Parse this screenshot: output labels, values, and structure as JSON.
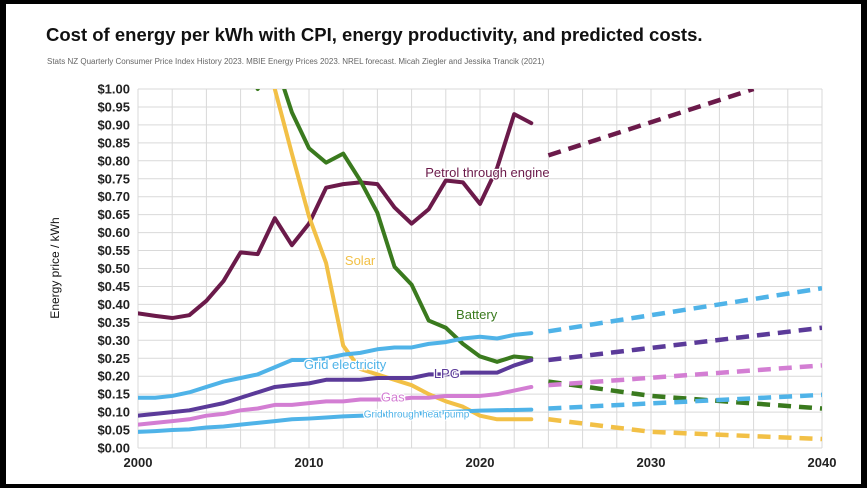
{
  "title": "Cost of energy per kWh with CPI, energy productivity, and predicted costs.",
  "subtitle": "Stats NZ Quarterly Consumer Price Index History 2023. MBIE Energy Prices 2023. NREL forecast. Micah Ziegler and Jessika Trancik (2021)",
  "chart_data": {
    "type": "line",
    "title": "Cost of energy per kWh with CPI, energy productivity, and predicted costs.",
    "xlabel": "",
    "ylabel": "Energy price / kWh",
    "xlim": [
      2000,
      2040
    ],
    "ylim": [
      0,
      1.0
    ],
    "x_ticks": [
      "2000",
      "2010",
      "2020",
      "2030",
      "2040"
    ],
    "y_ticks": [
      "$0.00",
      "$0.05",
      "$0.10",
      "$0.15",
      "$0.20",
      "$0.25",
      "$0.30",
      "$0.35",
      "$0.40",
      "$0.45",
      "$0.50",
      "$0.55",
      "$0.60",
      "$0.65",
      "$0.70",
      "$0.75",
      "$0.80",
      "$0.85",
      "$0.90",
      "$0.95",
      "$1.00"
    ],
    "grid": true,
    "legend": "none",
    "series": [
      {
        "name": "Petrol through engine",
        "color": "#6b1a4a",
        "values": [
          [
            2000,
            0.375
          ],
          [
            2001,
            0.368
          ],
          [
            2002,
            0.362
          ],
          [
            2003,
            0.37
          ],
          [
            2004,
            0.41
          ],
          [
            2005,
            0.465
          ],
          [
            2006,
            0.545
          ],
          [
            2007,
            0.54
          ],
          [
            2008,
            0.64
          ],
          [
            2009,
            0.565
          ],
          [
            2010,
            0.625
          ],
          [
            2011,
            0.725
          ],
          [
            2012,
            0.735
          ],
          [
            2013,
            0.74
          ],
          [
            2014,
            0.735
          ],
          [
            2015,
            0.67
          ],
          [
            2016,
            0.625
          ],
          [
            2017,
            0.665
          ],
          [
            2018,
            0.745
          ],
          [
            2019,
            0.74
          ],
          [
            2020,
            0.68
          ],
          [
            2021,
            0.78
          ],
          [
            2022,
            0.93
          ],
          [
            2023,
            0.905
          ]
        ],
        "forecast": [
          [
            2024,
            0.815
          ],
          [
            2036,
            1.0
          ]
        ],
        "label_pos": {
          "x": 2016.8,
          "y": 0.755
        }
      },
      {
        "name": "Battery",
        "color": "#3a7a1e",
        "values": [
          [
            2007,
            1.0
          ],
          [
            2008,
            1.08
          ],
          [
            2009,
            0.935
          ],
          [
            2010,
            0.835
          ],
          [
            2011,
            0.795
          ],
          [
            2012,
            0.82
          ],
          [
            2013,
            0.745
          ],
          [
            2014,
            0.655
          ],
          [
            2015,
            0.505
          ],
          [
            2016,
            0.455
          ],
          [
            2017,
            0.355
          ],
          [
            2018,
            0.335
          ],
          [
            2019,
            0.29
          ],
          [
            2020,
            0.255
          ],
          [
            2021,
            0.24
          ],
          [
            2022,
            0.255
          ],
          [
            2023,
            0.25
          ]
        ],
        "forecast": [
          [
            2024,
            0.185
          ],
          [
            2030,
            0.145
          ],
          [
            2040,
            0.11
          ]
        ],
        "label_pos": {
          "x": 2018.6,
          "y": 0.36
        }
      },
      {
        "name": "Solar",
        "color": "#f2c046",
        "values": [
          [
            2008,
            1.0
          ],
          [
            2009,
            0.82
          ],
          [
            2010,
            0.645
          ],
          [
            2011,
            0.515
          ],
          [
            2012,
            0.285
          ],
          [
            2013,
            0.22
          ],
          [
            2014,
            0.205
          ],
          [
            2015,
            0.19
          ],
          [
            2016,
            0.175
          ],
          [
            2017,
            0.15
          ],
          [
            2018,
            0.13
          ],
          [
            2019,
            0.115
          ],
          [
            2020,
            0.09
          ],
          [
            2021,
            0.08
          ],
          [
            2022,
            0.08
          ],
          [
            2023,
            0.08
          ]
        ],
        "forecast": [
          [
            2024,
            0.08
          ],
          [
            2030,
            0.045
          ],
          [
            2040,
            0.025
          ]
        ],
        "label_pos": {
          "x": 2012.1,
          "y": 0.51
        }
      },
      {
        "name": "Grid electricity",
        "color": "#4fb3e8",
        "values": [
          [
            2000,
            0.14
          ],
          [
            2001,
            0.14
          ],
          [
            2002,
            0.145
          ],
          [
            2003,
            0.155
          ],
          [
            2004,
            0.17
          ],
          [
            2005,
            0.185
          ],
          [
            2006,
            0.195
          ],
          [
            2007,
            0.205
          ],
          [
            2008,
            0.225
          ],
          [
            2009,
            0.245
          ],
          [
            2010,
            0.245
          ],
          [
            2011,
            0.25
          ],
          [
            2012,
            0.26
          ],
          [
            2013,
            0.265
          ],
          [
            2014,
            0.275
          ],
          [
            2015,
            0.28
          ],
          [
            2016,
            0.28
          ],
          [
            2017,
            0.29
          ],
          [
            2018,
            0.295
          ],
          [
            2019,
            0.305
          ],
          [
            2020,
            0.31
          ],
          [
            2021,
            0.305
          ],
          [
            2022,
            0.315
          ],
          [
            2023,
            0.32
          ]
        ],
        "forecast": [
          [
            2024,
            0.325
          ],
          [
            2040,
            0.445
          ]
        ],
        "label_pos": {
          "x": 2009.7,
          "y": 0.22
        }
      },
      {
        "name": "LPG",
        "color": "#5b3a99",
        "values": [
          [
            2000,
            0.09
          ],
          [
            2001,
            0.095
          ],
          [
            2002,
            0.1
          ],
          [
            2003,
            0.105
          ],
          [
            2004,
            0.115
          ],
          [
            2005,
            0.125
          ],
          [
            2006,
            0.14
          ],
          [
            2007,
            0.155
          ],
          [
            2008,
            0.17
          ],
          [
            2009,
            0.175
          ],
          [
            2010,
            0.18
          ],
          [
            2011,
            0.19
          ],
          [
            2012,
            0.19
          ],
          [
            2013,
            0.19
          ],
          [
            2014,
            0.195
          ],
          [
            2015,
            0.195
          ],
          [
            2016,
            0.195
          ],
          [
            2017,
            0.205
          ],
          [
            2018,
            0.205
          ],
          [
            2019,
            0.21
          ],
          [
            2020,
            0.21
          ],
          [
            2021,
            0.21
          ],
          [
            2022,
            0.23
          ],
          [
            2023,
            0.245
          ]
        ],
        "forecast": [
          [
            2024,
            0.245
          ],
          [
            2040,
            0.335
          ]
        ],
        "label_pos": {
          "x": 2017.3,
          "y": 0.195
        }
      },
      {
        "name": "Gas",
        "color": "#d37ed3",
        "values": [
          [
            2000,
            0.065
          ],
          [
            2001,
            0.07
          ],
          [
            2002,
            0.075
          ],
          [
            2003,
            0.08
          ],
          [
            2004,
            0.09
          ],
          [
            2005,
            0.095
          ],
          [
            2006,
            0.105
          ],
          [
            2007,
            0.11
          ],
          [
            2008,
            0.12
          ],
          [
            2009,
            0.12
          ],
          [
            2010,
            0.125
          ],
          [
            2011,
            0.13
          ],
          [
            2012,
            0.13
          ],
          [
            2013,
            0.135
          ],
          [
            2014,
            0.135
          ],
          [
            2015,
            0.135
          ],
          [
            2016,
            0.14
          ],
          [
            2017,
            0.14
          ],
          [
            2018,
            0.145
          ],
          [
            2019,
            0.145
          ],
          [
            2020,
            0.145
          ],
          [
            2021,
            0.15
          ],
          [
            2022,
            0.16
          ],
          [
            2023,
            0.17
          ]
        ],
        "forecast": [
          [
            2024,
            0.175
          ],
          [
            2040,
            0.23
          ]
        ],
        "label_pos": {
          "x": 2014.2,
          "y": 0.13
        }
      },
      {
        "name": "Grid through heat pump",
        "color": "#4fb3e8",
        "values": [
          [
            2000,
            0.045
          ],
          [
            2001,
            0.047
          ],
          [
            2002,
            0.05
          ],
          [
            2003,
            0.052
          ],
          [
            2004,
            0.057
          ],
          [
            2005,
            0.06
          ],
          [
            2006,
            0.065
          ],
          [
            2007,
            0.07
          ],
          [
            2008,
            0.075
          ],
          [
            2009,
            0.08
          ],
          [
            2010,
            0.082
          ],
          [
            2011,
            0.085
          ],
          [
            2012,
            0.088
          ],
          [
            2013,
            0.09
          ],
          [
            2014,
            0.092
          ],
          [
            2015,
            0.094
          ],
          [
            2016,
            0.095
          ],
          [
            2017,
            0.098
          ],
          [
            2018,
            0.1
          ],
          [
            2019,
            0.102
          ],
          [
            2020,
            0.104
          ],
          [
            2021,
            0.105
          ],
          [
            2022,
            0.106
          ],
          [
            2023,
            0.107
          ]
        ],
        "forecast": [
          [
            2024,
            0.11
          ],
          [
            2040,
            0.148
          ]
        ],
        "label_pos": {
          "x": 2013.2,
          "y": 0.085
        }
      }
    ]
  }
}
